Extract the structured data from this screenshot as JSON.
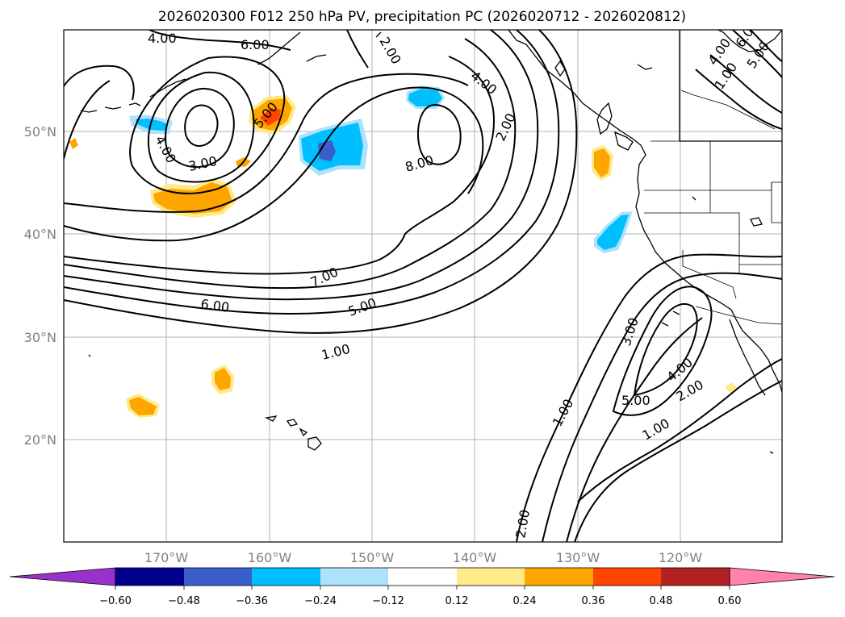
{
  "title": "2026020300 F012 250 hPa PV, precipitation PC (2026020712 - 2026020812)",
  "lon_ticks": [
    "170°W",
    "160°W",
    "150°W",
    "140°W",
    "130°W",
    "120°W"
  ],
  "lat_ticks": [
    "50°N",
    "40°N",
    "30°N",
    "20°N"
  ],
  "colorbar": {
    "ticks": [
      "−0.60",
      "−0.48",
      "−0.36",
      "−0.24",
      "−0.12",
      "0.12",
      "0.24",
      "0.36",
      "0.48",
      "0.60"
    ],
    "colors": [
      "#9932CC",
      "#00008B",
      "#3A5FCD",
      "#00BFFF",
      "#ADE2FA",
      "#FFFFFF",
      "#FFEA8A",
      "#FFA500",
      "#FF4500",
      "#B22222",
      "#FF82AB"
    ]
  },
  "contour_labels": [
    {
      "text": "4.00"
    },
    {
      "text": "6.00"
    },
    {
      "text": "2.00"
    },
    {
      "text": "4.00"
    },
    {
      "text": "3.00"
    },
    {
      "text": "4.00"
    },
    {
      "text": "5.00"
    },
    {
      "text": "8.00"
    },
    {
      "text": "2.00"
    },
    {
      "text": "7.00"
    },
    {
      "text": "6.00"
    },
    {
      "text": "5.00"
    },
    {
      "text": "1.00"
    },
    {
      "text": "3.00"
    },
    {
      "text": "4.00"
    },
    {
      "text": "5.00"
    },
    {
      "text": "2.00"
    },
    {
      "text": "1.00"
    },
    {
      "text": "1.00"
    },
    {
      "text": "2.00"
    },
    {
      "text": "6.00"
    },
    {
      "text": "5.00"
    },
    {
      "text": "4.00"
    },
    {
      "text": "1.00"
    }
  ]
}
